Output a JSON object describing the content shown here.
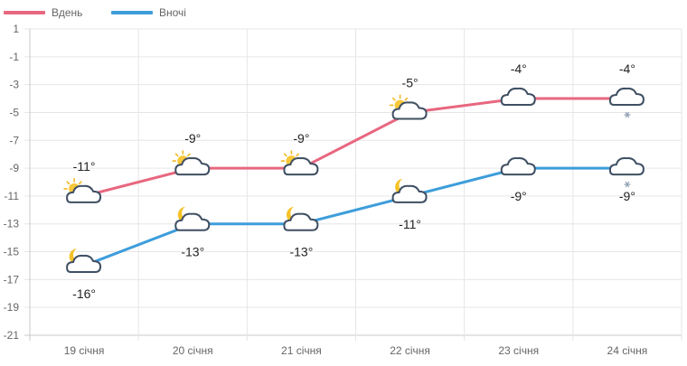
{
  "chart_data": {
    "type": "line",
    "categories": [
      "19 січня",
      "20 січня",
      "21 січня",
      "22 січня",
      "23 січня",
      "24 січня"
    ],
    "series": [
      {
        "name": "Вдень",
        "color": "#e8677f",
        "values": [
          -11,
          -9,
          -9,
          -5,
          -4,
          -4
        ],
        "labels": [
          "-11°",
          "-9°",
          "-9°",
          "-5°",
          "-4°",
          "-4°"
        ],
        "icons": [
          "sun-cloud-icon",
          "sun-cloud-icon",
          "sun-cloud-icon",
          "sun-cloud-icon",
          "cloud-icon",
          "cloud-snow-icon"
        ]
      },
      {
        "name": "Вночі",
        "color": "#3d9ddb",
        "values": [
          -16,
          -13,
          -13,
          -11,
          -9,
          -9
        ],
        "labels": [
          "-16°",
          "-13°",
          "-13°",
          "-11°",
          "-9°",
          "-9°"
        ],
        "icons": [
          "moon-cloud-icon",
          "moon-cloud-icon",
          "moon-cloud-icon",
          "moon-cloud-icon",
          "cloud-icon",
          "cloud-snow-icon"
        ]
      }
    ],
    "y_ticks": [
      "1",
      "-1",
      "-3",
      "-5",
      "-7",
      "-9",
      "-11",
      "-13",
      "-15",
      "-17",
      "-19",
      "-21"
    ],
    "ylim": [
      -21,
      1
    ],
    "grid": true,
    "legend_position": "top-left"
  }
}
